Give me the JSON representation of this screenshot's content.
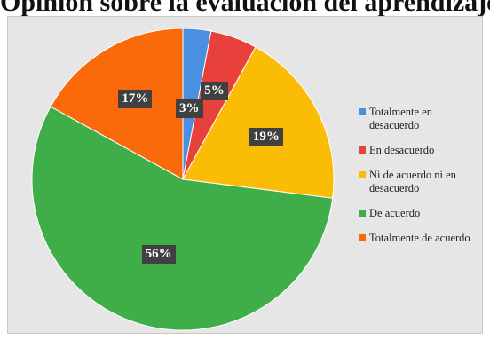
{
  "title": "Opinión sobre la evaluación del aprendizaje",
  "chart_data": {
    "type": "pie",
    "categories": [
      "Totalmente en desacuerdo",
      "En desacuerdo",
      "Ni de acuerdo ni en desacuerdo",
      "De acuerdo",
      "Totalmente de acuerdo"
    ],
    "values": [
      3,
      5,
      19,
      56,
      17
    ],
    "labels": [
      "3%",
      "5%",
      "19%",
      "56%",
      "17%"
    ],
    "colors": [
      "#4a8fe0",
      "#e8403a",
      "#fbbc05",
      "#3fae49",
      "#fa6a0a"
    ],
    "legend_position": "right"
  }
}
